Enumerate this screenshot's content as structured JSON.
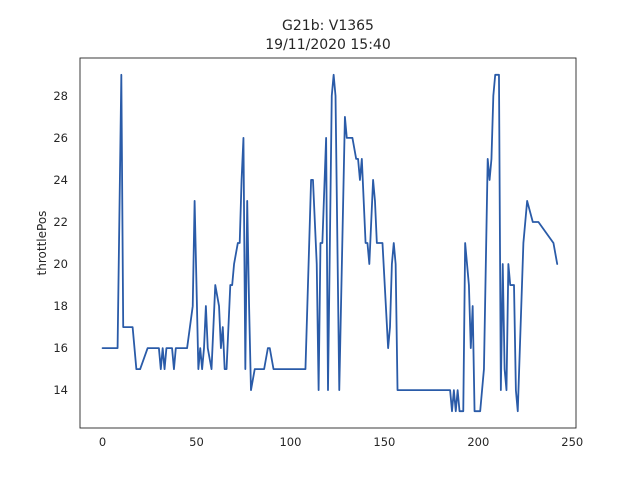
{
  "chart_data": {
    "type": "line",
    "title_line1": "G21b: V1365",
    "title_line2": "19/11/2020 15:40",
    "xlabel": "",
    "ylabel": "throttlePos",
    "xlim": [
      -12,
      252
    ],
    "ylim": [
      12.2,
      29.8
    ],
    "xticks": [
      0,
      50,
      100,
      150,
      200,
      250
    ],
    "yticks": [
      14,
      16,
      18,
      20,
      22,
      24,
      26,
      28
    ],
    "grid": false,
    "series_color": "#2a5ba8",
    "series": [
      {
        "name": "throttlePos",
        "x": [
          0,
          8,
          10,
          11,
          16,
          18,
          20,
          24,
          28,
          30,
          31,
          32,
          33,
          34,
          35,
          37,
          38,
          39,
          40,
          45,
          48,
          49,
          51,
          52,
          53,
          54,
          55,
          56,
          58,
          60,
          62,
          63,
          64,
          65,
          66,
          68,
          69,
          70,
          72,
          73,
          74,
          75,
          76,
          77,
          78,
          79,
          81,
          82,
          86,
          88,
          89,
          91,
          95,
          100,
          104,
          107,
          108,
          111,
          112,
          114,
          115,
          116,
          117,
          119,
          120,
          122,
          123,
          124,
          126,
          129,
          130,
          131,
          132,
          133,
          135,
          136,
          137,
          138,
          140,
          141,
          142,
          144,
          145,
          146,
          148,
          149,
          152,
          153,
          154,
          155,
          156,
          157,
          158,
          162,
          185,
          186,
          187,
          188,
          189,
          190,
          192,
          193,
          195,
          196,
          197,
          198,
          199,
          201,
          203,
          205,
          206,
          207,
          208,
          209,
          211,
          212,
          213,
          214,
          215,
          216,
          217,
          219,
          220,
          221,
          224,
          226,
          229,
          231,
          232,
          240,
          242
        ],
        "y": [
          16,
          16,
          29,
          17,
          17,
          15,
          15,
          16,
          16,
          16,
          15,
          16,
          15,
          16,
          16,
          16,
          15,
          16,
          16,
          16,
          18,
          23,
          15,
          16,
          15,
          16,
          18,
          16,
          15,
          19,
          18,
          16,
          17,
          15,
          15,
          19,
          19,
          20,
          21,
          21,
          24,
          26,
          15,
          23,
          18,
          14,
          15,
          15,
          15,
          16,
          16,
          15,
          15,
          15,
          15,
          15,
          15,
          24,
          24,
          20,
          14,
          21,
          21,
          26,
          14,
          28,
          29,
          28,
          14,
          27,
          26,
          26,
          26,
          26,
          25,
          25,
          24,
          25,
          21,
          21,
          20,
          24,
          23,
          21,
          21,
          21,
          16,
          17,
          20,
          21,
          20,
          14,
          14,
          14,
          14,
          13,
          14,
          13,
          14,
          13,
          13,
          21,
          19,
          16,
          18,
          13,
          13,
          13,
          15,
          25,
          24,
          25,
          28,
          29,
          29,
          14,
          20,
          15,
          14,
          20,
          19,
          19,
          14,
          13,
          21,
          23,
          22,
          22,
          22,
          21,
          20
        ]
      }
    ]
  }
}
